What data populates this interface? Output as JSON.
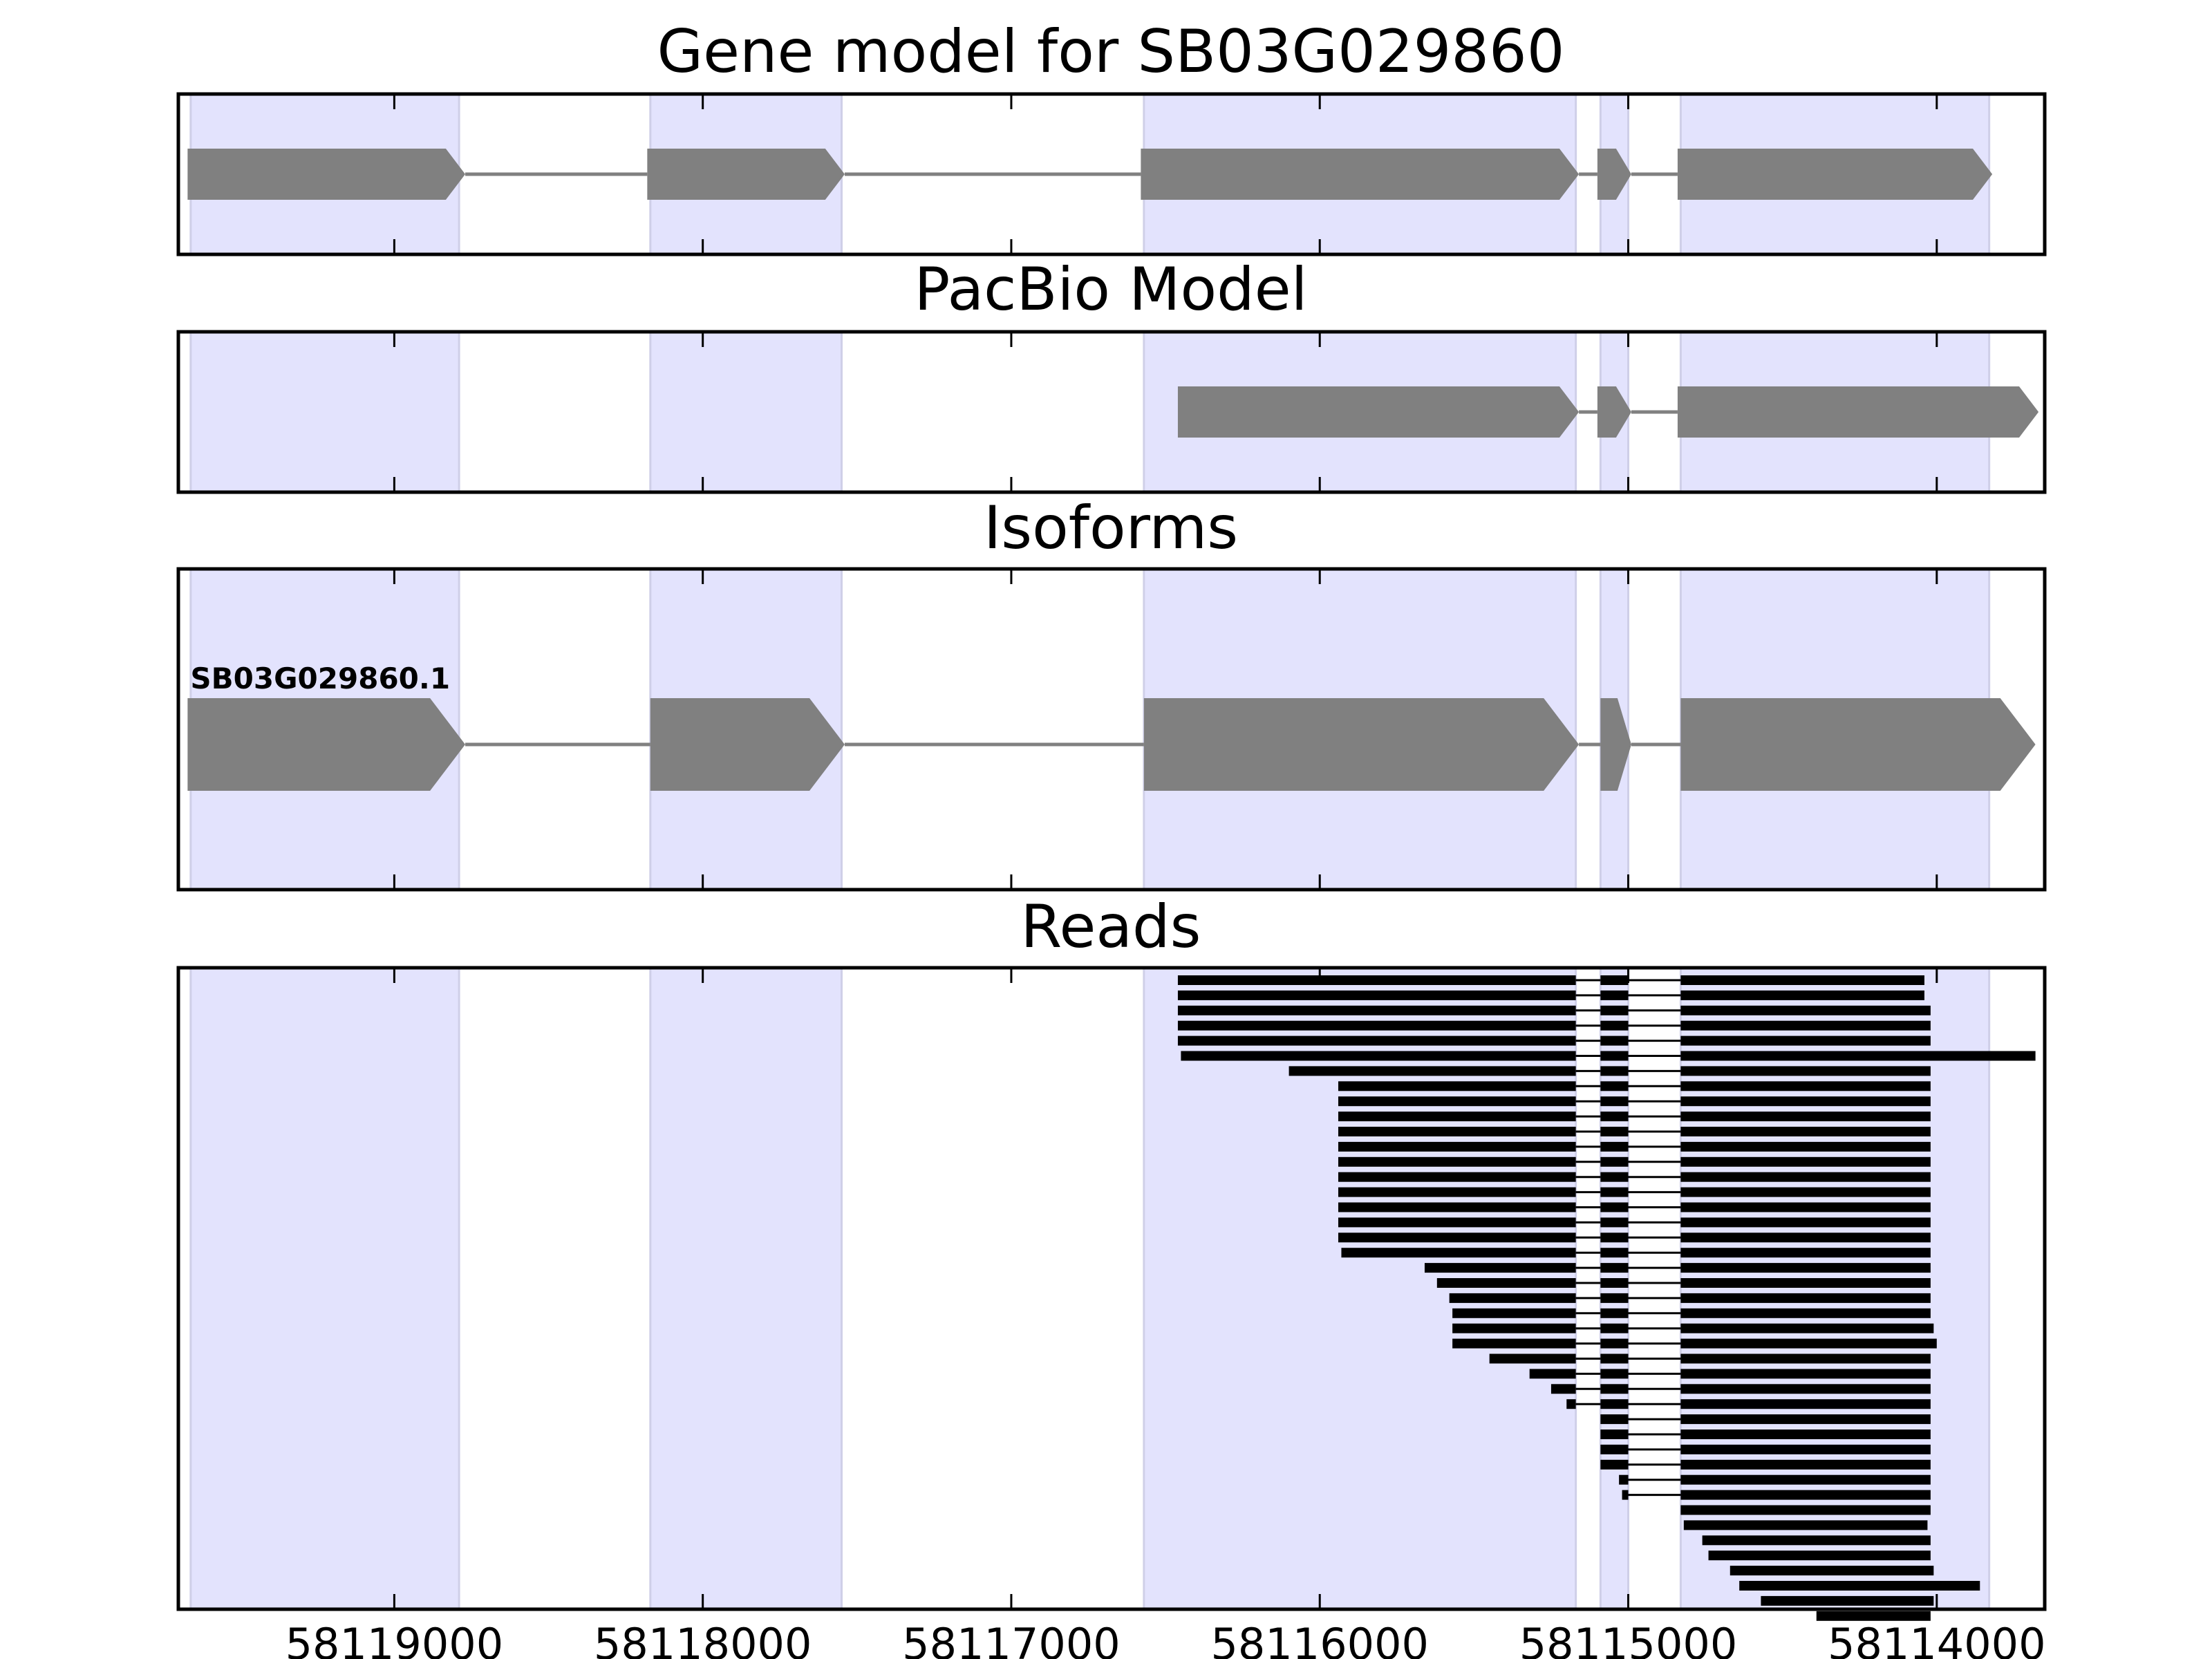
{
  "chart_data": {
    "type": "gene-track",
    "x_direction": "reversed",
    "xlim": [
      58119700,
      58113650
    ],
    "xticks": [
      58119000,
      58118000,
      58117000,
      58116000,
      58115000,
      58114000
    ],
    "xtick_labels": [
      "58119000",
      "58118000",
      "58117000",
      "58116000",
      "58115000",
      "58114000"
    ],
    "colors": {
      "exon_highlight": "#e3e3fd",
      "exon_highlight_edge": "#cfcfe8",
      "model_feature": "#808080",
      "intron_line": "#808080",
      "read": "#000000",
      "frame": "#000000"
    },
    "highlight_regions": [
      [
        58119660,
        58118790
      ],
      [
        58118170,
        58117550
      ],
      [
        58116570,
        58115170
      ],
      [
        58115090,
        58115000
      ],
      [
        58114830,
        58113830
      ]
    ],
    "panels": [
      {
        "title": "Gene model for SB03G029860",
        "features": [
          {
            "label": "",
            "exons": [
              [
                58119670,
                58118770
              ],
              [
                58118180,
                58117540
              ],
              [
                58116580,
                58115160
              ],
              [
                58115100,
                58114990
              ],
              [
                58114840,
                58113820
              ]
            ]
          }
        ]
      },
      {
        "title": "PacBio Model",
        "features": [
          {
            "label": "",
            "exons": [
              [
                58116460,
                58115160
              ],
              [
                58115100,
                58114990
              ],
              [
                58114840,
                58113670
              ]
            ]
          }
        ]
      },
      {
        "title": "Isoforms",
        "features": [
          {
            "label": "SB03G029860.1",
            "exons": [
              [
                58119670,
                58118770
              ],
              [
                58118170,
                58117540
              ],
              [
                58116570,
                58115160
              ],
              [
                58115090,
                58114990
              ],
              [
                58114830,
                58113680
              ]
            ]
          }
        ]
      },
      {
        "title": "Reads",
        "reads": [
          [
            58116460,
            58114040
          ],
          [
            58116460,
            58114040
          ],
          [
            58116460,
            58114020
          ],
          [
            58116460,
            58114020
          ],
          [
            58116460,
            58114020
          ],
          [
            58116450,
            58113680
          ],
          [
            58116100,
            58114020
          ],
          [
            58115940,
            58114020
          ],
          [
            58115940,
            58114020
          ],
          [
            58115940,
            58114020
          ],
          [
            58115940,
            58114020
          ],
          [
            58115940,
            58114020
          ],
          [
            58115940,
            58114020
          ],
          [
            58115940,
            58114020
          ],
          [
            58115940,
            58114020
          ],
          [
            58115940,
            58114020
          ],
          [
            58115940,
            58114020
          ],
          [
            58115940,
            58114020
          ],
          [
            58115930,
            58114020
          ],
          [
            58115660,
            58114020
          ],
          [
            58115620,
            58114020
          ],
          [
            58115580,
            58114020
          ],
          [
            58115570,
            58114020
          ],
          [
            58115570,
            58114010
          ],
          [
            58115570,
            58114000
          ],
          [
            58115450,
            58114020
          ],
          [
            58115320,
            58114020
          ],
          [
            58115250,
            58114020
          ],
          [
            58115200,
            58114020
          ],
          [
            58115100,
            58114020
          ],
          [
            58115100,
            58114020
          ],
          [
            58115100,
            58114020
          ],
          [
            58115100,
            58114020
          ],
          [
            58115030,
            58114020
          ],
          [
            58115020,
            58114020
          ],
          [
            58114830,
            58114020
          ],
          [
            58114820,
            58114030
          ],
          [
            58114760,
            58114020
          ],
          [
            58114740,
            58114020
          ],
          [
            58114670,
            58114010
          ],
          [
            58114640,
            58113860
          ],
          [
            58114570,
            58114010
          ],
          [
            58114390,
            58114020
          ]
        ]
      }
    ]
  }
}
